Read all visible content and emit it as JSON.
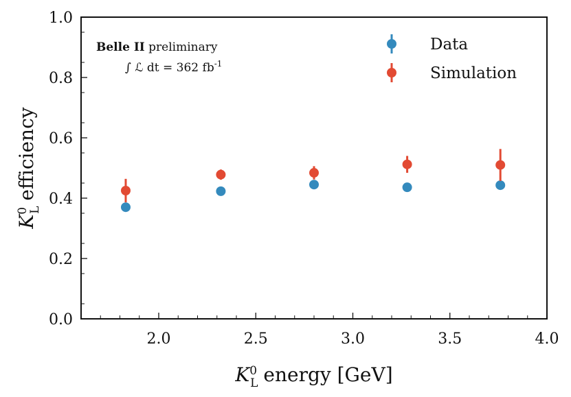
{
  "chart_data": {
    "type": "scatter",
    "title": "",
    "xlabel": "K_L^0 energy [GeV]",
    "xlabel_parts": {
      "symbol": "K",
      "sub": "L",
      "sup": "0",
      "rest": "energy [GeV]"
    },
    "ylabel": "K_L^0 efficiency",
    "ylabel_parts": {
      "symbol": "K",
      "sub": "L",
      "sup": "0",
      "rest": "efficiency"
    },
    "xlim": [
      1.6,
      4.0
    ],
    "ylim": [
      0.0,
      1.0
    ],
    "xticks": [
      2.0,
      2.5,
      3.0,
      3.5,
      4.0
    ],
    "xtick_labels": [
      "2.0",
      "2.5",
      "3.0",
      "3.5",
      "4.0"
    ],
    "yticks": [
      0.0,
      0.2,
      0.4,
      0.6,
      0.8,
      1.0
    ],
    "ytick_labels": [
      "0.0",
      "0.2",
      "0.4",
      "0.6",
      "0.8",
      "1.0"
    ],
    "grid": false,
    "legend_position": "top-right",
    "x": [
      1.83,
      2.32,
      2.8,
      3.28,
      3.76
    ],
    "series": [
      {
        "name": "Data",
        "color": "#348abd",
        "values": [
          0.37,
          0.423,
          0.445,
          0.436,
          0.443
        ],
        "errors": [
          0.004,
          0.004,
          0.004,
          0.004,
          0.004
        ]
      },
      {
        "name": "Simulation",
        "color": "#e24a33",
        "values": [
          0.425,
          0.478,
          0.484,
          0.512,
          0.51
        ],
        "errors": [
          0.039,
          0.017,
          0.022,
          0.028,
          0.053
        ]
      }
    ],
    "annotations": {
      "experiment_bold": "Belle II",
      "experiment_rest": " preliminary",
      "luminosity_prefix": "∫ ℒ dt = 362 fb",
      "luminosity_sup": "-1"
    }
  }
}
